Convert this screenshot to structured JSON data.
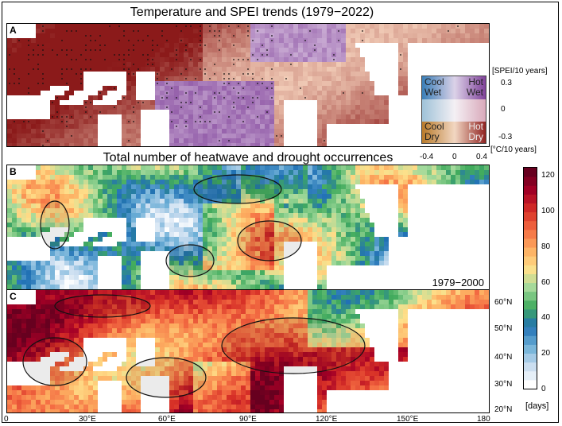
{
  "figure": {
    "title_top": "Temperature and SPEI trends (1979−2022)",
    "title_middle": "Total number of heatwave and drought occurrences"
  },
  "panels": [
    {
      "letter": "A",
      "label": ""
    },
    {
      "letter": "B",
      "label": "1979−2000"
    },
    {
      "letter": "C",
      "label": "2001−2022"
    }
  ],
  "axes": {
    "x_ticks": [
      "0",
      "30°E",
      "60°E",
      "90°E",
      "120°E",
      "150°E",
      "180"
    ],
    "y_ticks": [
      "60°N",
      "50°N",
      "40°N",
      "30°N",
      "20°N"
    ]
  },
  "legend": {
    "quadrants": {
      "cool_wet": "Cool\nWet",
      "hot_wet": "Hot\nWet",
      "cool_dry": "Cool\nDry",
      "hot_dry": "Hot\nDry"
    },
    "spei_unit": "[SPEI/10 years]",
    "spei_ticks": [
      "0.3",
      "0",
      "-0.3"
    ],
    "temp_unit": "[°C/10 years]",
    "temp_ticks": [
      "-0.4",
      "0",
      "0.4"
    ]
  },
  "colorbar": {
    "ticks": [
      "120",
      "100",
      "80",
      "60",
      "40",
      "20",
      "0"
    ],
    "unit": "[days]",
    "range": [
      0,
      125
    ],
    "colors": [
      "#ffffff",
      "#c6dbef",
      "#6baed6",
      "#2171b5",
      "#41ab5d",
      "#a1d99b",
      "#fee08b",
      "#fdae61",
      "#f46d43",
      "#d73027",
      "#a50026",
      "#67001f"
    ]
  },
  "colors": {
    "hot_dry": "#8b1a1a",
    "hot_wet": "#7b3a96",
    "cool_dry": "#b87a2a",
    "cool_wet": "#3a7fb8",
    "land_white": "#ffffff"
  }
}
